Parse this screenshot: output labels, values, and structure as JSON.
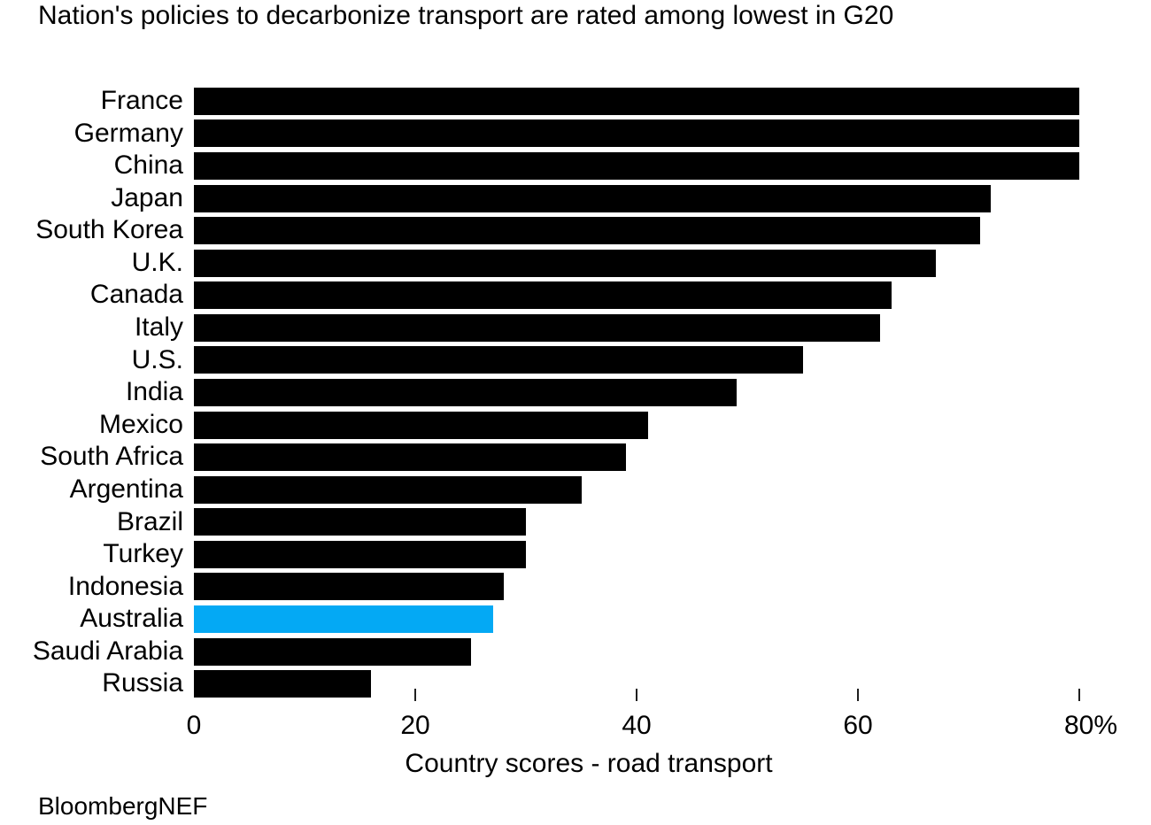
{
  "title": "Nation's policies to decarbonize transport are rated among lowest in G20",
  "source": "BloombergNEF",
  "colors": {
    "bar": "#000000",
    "highlight": "#04a9f4",
    "text": "#000000",
    "tick": "#1f1f1f",
    "background": "#ffffff"
  },
  "chart_data": {
    "type": "bar",
    "orientation": "horizontal",
    "title": "Nation's policies to decarbonize transport are rated among lowest in G20",
    "xlabel": "Country scores - road transport",
    "categories": [
      "France",
      "Germany",
      "China",
      "Japan",
      "South Korea",
      "U.K.",
      "Canada",
      "Italy",
      "U.S.",
      "India",
      "Mexico",
      "South Africa",
      "Argentina",
      "Brazil",
      "Turkey",
      "Indonesia",
      "Australia",
      "Saudi Arabia",
      "Russia"
    ],
    "values": [
      80,
      80,
      80,
      72,
      71,
      67,
      63,
      62,
      55,
      49,
      41,
      39,
      35,
      30,
      30,
      28,
      27,
      25,
      16
    ],
    "unit": "%",
    "highlight_category": "Australia",
    "bar_color": "#000000",
    "highlight_color": "#04a9f4",
    "x_ticks": [
      0,
      20,
      40,
      60,
      80
    ],
    "x_tick_labels": [
      "0",
      "20",
      "40",
      "60",
      "80%"
    ],
    "xlim": [
      0,
      83
    ],
    "grid": false,
    "legend": null,
    "source": "BloombergNEF"
  }
}
